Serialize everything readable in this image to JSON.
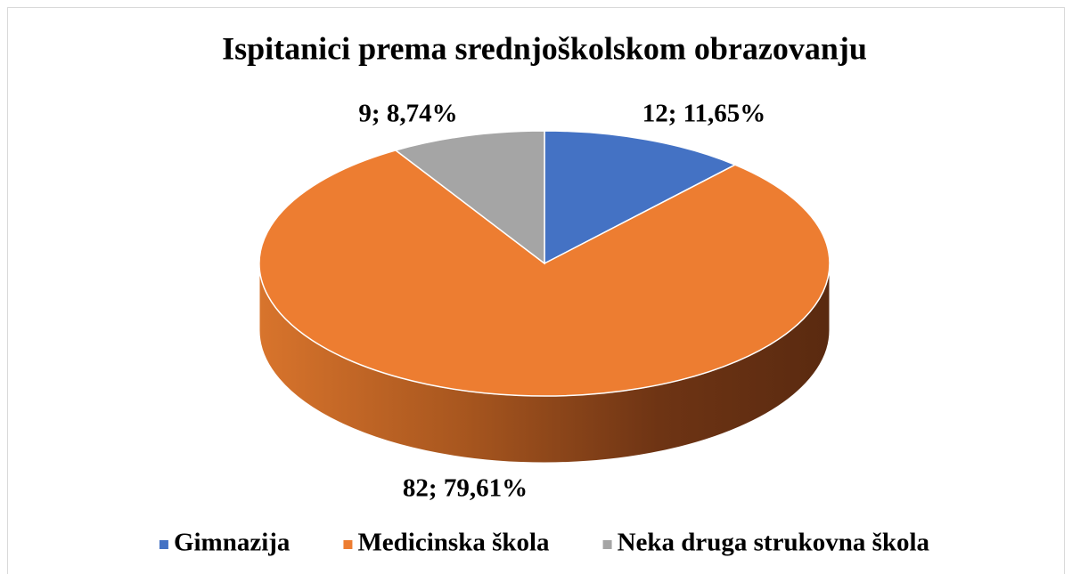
{
  "chart_data": {
    "type": "pie",
    "title": "Ispitanici prema srednjoškolskom obrazovanju",
    "categories": [
      "Gimnazija",
      "Medicinska škola",
      "Neka druga strukovna škola"
    ],
    "values": [
      12,
      82,
      9
    ],
    "value_labels": [
      "12; 11,65%",
      "82; 79,61%",
      "9; 8,74%"
    ],
    "colors": [
      "#4472c4",
      "#ed7d31",
      "#a5a5a5"
    ],
    "legend": "bottom"
  }
}
